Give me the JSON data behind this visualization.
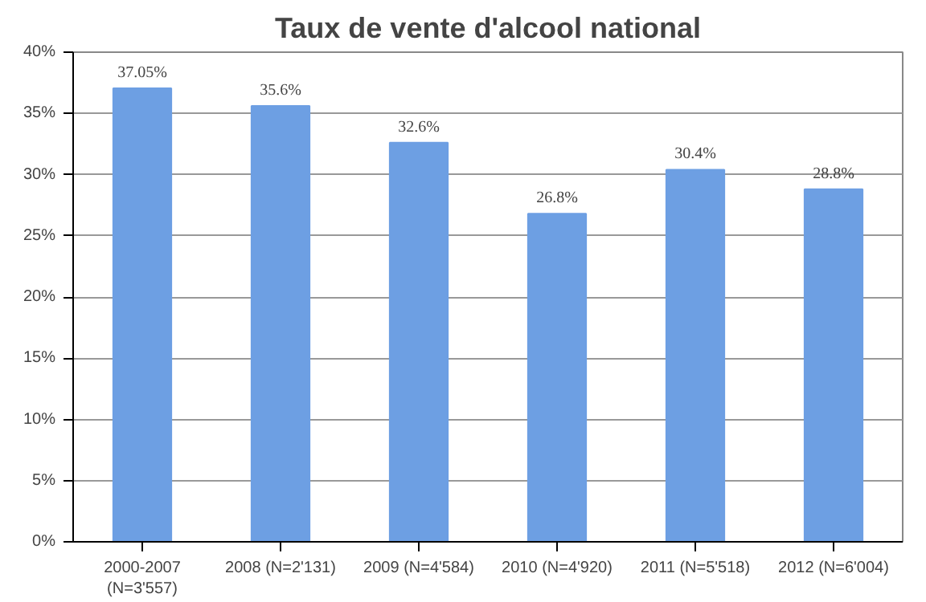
{
  "chart_data": {
    "type": "bar",
    "title": "Taux de vente d'alcool national",
    "categories": [
      "2000-2007\n(N=3'557)",
      "2008 (N=2'131)",
      "2009 (N=4'584)",
      "2010 (N=4'920)",
      "2011 (N=5'518)",
      "2012 (N=6'004)"
    ],
    "values": [
      37.05,
      35.6,
      32.6,
      26.8,
      30.4,
      28.8
    ],
    "value_labels": [
      "37.05%",
      "35.6%",
      "32.6%",
      "26.8%",
      "30.4%",
      "28.8%"
    ],
    "color": "#6d9fe3",
    "ylim": [
      0,
      40
    ],
    "yticks": [
      {
        "value": 0,
        "label": "0%"
      },
      {
        "value": 5,
        "label": "5%"
      },
      {
        "value": 10,
        "label": "10%"
      },
      {
        "value": 15,
        "label": "15%"
      },
      {
        "value": 20,
        "label": "20%"
      },
      {
        "value": 25,
        "label": "25%"
      },
      {
        "value": 30,
        "label": "30%"
      },
      {
        "value": 35,
        "label": "35%"
      },
      {
        "value": 40,
        "label": "40%"
      }
    ],
    "grid": "y"
  }
}
